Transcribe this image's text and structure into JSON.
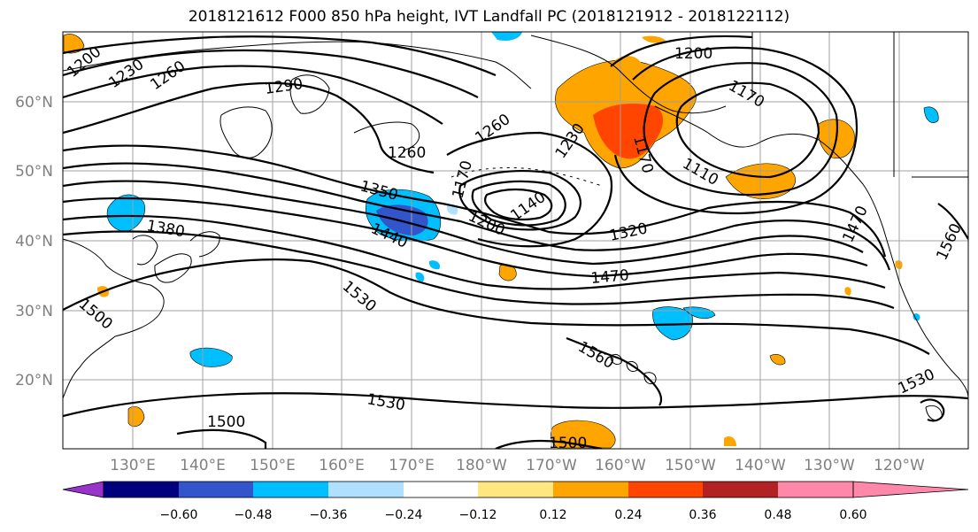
{
  "title": "2018121612 F000 850 hPa height, IVT Landfall PC (2018121912 - 2018122112)",
  "lat_labels": [
    "60°N",
    "50°N",
    "40°N",
    "30°N",
    "20°N"
  ],
  "lon_labels": [
    "130°E",
    "140°E",
    "150°E",
    "160°E",
    "170°E",
    "180°W",
    "170°W",
    "160°W",
    "150°W",
    "140°W",
    "130°W",
    "120°W"
  ],
  "colorbar": {
    "colors": [
      "#9933cc",
      "#00007f",
      "#3355cc",
      "#00bfff",
      "#b0e0ff",
      "#ffffff",
      "#ffe680",
      "#ffa500",
      "#ff4500",
      "#b22222",
      "#ff88aa"
    ],
    "ticks": [
      "−0.60",
      "−0.48",
      "−0.36",
      "−0.24",
      "−0.12",
      "0.12",
      "0.24",
      "0.36",
      "0.48",
      "0.60"
    ]
  },
  "contour_labels": [
    "1200",
    "1230",
    "1260",
    "1290",
    "1260",
    "1350",
    "1380",
    "1440",
    "1260",
    "1170",
    "1200",
    "1140",
    "1230",
    "1170",
    "1110",
    "1200",
    "1170",
    "1320",
    "1470",
    "1470",
    "1560",
    "1530",
    "1500",
    "1560",
    "1530",
    "1500",
    "1530",
    "1500"
  ]
}
